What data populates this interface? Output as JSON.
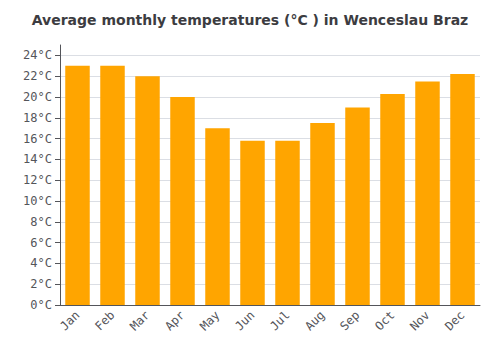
{
  "chart_data": {
    "type": "bar",
    "title": "Average monthly temperatures (°C ) in Wenceslau Braz",
    "categories": [
      "Jan",
      "Feb",
      "Mar",
      "Apr",
      "May",
      "Jun",
      "Jul",
      "Aug",
      "Sep",
      "Oct",
      "Nov",
      "Dec"
    ],
    "values": [
      23,
      23,
      22,
      20,
      17,
      15.8,
      15.8,
      17.5,
      19,
      20.3,
      21.5,
      22.2
    ],
    "color": "#FFA500",
    "ylim": [
      0,
      25
    ],
    "yticks": [
      {
        "value": 0,
        "label": "0°C"
      },
      {
        "value": 2,
        "label": "2°C"
      },
      {
        "value": 4,
        "label": "4°C"
      },
      {
        "value": 6,
        "label": "6°C"
      },
      {
        "value": 8,
        "label": "8°C"
      },
      {
        "value": 10,
        "label": "10°C"
      },
      {
        "value": 12,
        "label": "12°C"
      },
      {
        "value": 14,
        "label": "14°C"
      },
      {
        "value": 16,
        "label": "16°C"
      },
      {
        "value": 18,
        "label": "18°C"
      },
      {
        "value": 20,
        "label": "20°C"
      },
      {
        "value": 22,
        "label": "22°C"
      },
      {
        "value": 24,
        "label": "24°C"
      }
    ],
    "grid": true
  }
}
